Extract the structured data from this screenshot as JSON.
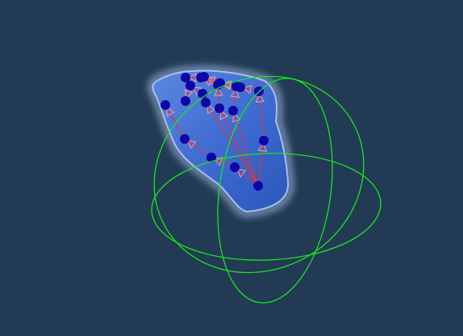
{
  "viewport": {
    "background": "#223a54",
    "gizmo_color": "#17e61e",
    "hand_color": "#3d6fd6",
    "hand_glow": "#a8c0ec",
    "joint_color": "#0d06a8",
    "bone_color": "#ff2a2a",
    "cone_color": "#ff9a9a"
  },
  "skeleton": {
    "joint_count": 21,
    "bone_count": 20
  }
}
